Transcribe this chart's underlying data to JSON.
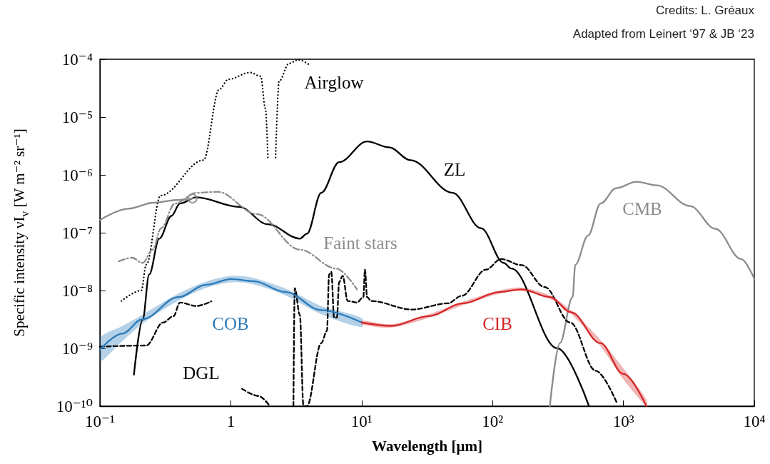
{
  "chart_data": {
    "type": "line",
    "xlabel": "Wavelength [μm]",
    "ylabel": "Specific intensity νI$_{ν}$ [W m⁻² sr⁻¹]",
    "log": "xy",
    "xlim": [
      0.1,
      10000
    ],
    "xticks": [
      {
        "value": 0.1,
        "label": "10⁻¹"
      },
      1,
      {
        "value": 10,
        "label": "10¹"
      },
      {
        "value": 100,
        "label": "10²"
      },
      {
        "value": 1000,
        "label": "10³"
      },
      {
        "value": 10000,
        "label": "10⁴"
      }
    ],
    "ylim": [
      1e-10,
      0.0001
    ],
    "yticks": [
      {
        "value": 1e-10,
        "label": "10⁻¹⁰"
      },
      {
        "value": 1e-09,
        "label": "10⁻⁹"
      },
      {
        "value": 1e-08,
        "label": "10⁻⁸"
      },
      {
        "value": 1e-07,
        "label": "10⁻⁷"
      },
      {
        "value": 1e-06,
        "label": "10⁻⁶"
      },
      {
        "value": 1e-05,
        "label": "10⁻⁵"
      },
      {
        "value": 0.0001,
        "label": "10⁻⁴"
      }
    ],
    "marker": "none",
    "series": [
      {
        "name": "Airglow",
        "color": "#000000",
        "line_style": "dotted",
        "x": [
          0.146,
          0.207,
          0.226,
          0.291,
          0.618,
          0.815,
          0.96,
          1.4,
          1.69,
          1.84,
          1.92,
          2.06,
          2.2,
          2.34,
          2.79,
          3.29,
          3.96
        ],
        "values": [
          6.6e-09,
          1e-08,
          2.8e-08,
          4.4e-07,
          1.8e-06,
          3e-05,
          4.5e-05,
          5.9e-05,
          5.1e-05,
          1.4e-05,
          2e-06,
          null,
          2e-06,
          4.2e-05,
          8.5e-05,
          9.8e-05,
          8.1e-05
        ]
      },
      {
        "name": "ZL",
        "color": "#000000",
        "line_style": "solid",
        "x": [
          0.182,
          0.212,
          0.238,
          0.284,
          0.352,
          0.409,
          0.545,
          1.16,
          1.92,
          3.37,
          3.82,
          4.91,
          6.73,
          11.0,
          16.2,
          23.6,
          49.5,
          81.5,
          122,
          139,
          313,
          546
        ],
        "values": [
          3.5e-10,
          3.1e-09,
          1.9e-08,
          7.9e-08,
          1.95e-07,
          3.2e-07,
          4.1e-07,
          2.8e-07,
          1.4e-07,
          7.9e-08,
          9.6e-08,
          4.9e-07,
          1.66e-06,
          3.8e-06,
          3e-06,
          1.8e-06,
          4.9e-07,
          1.2e-07,
          3e-08,
          2.4e-08,
          1e-09,
          1e-10
        ]
      },
      {
        "name": "Faint stars",
        "color": "#8c8c8c",
        "line_style": "dashdot",
        "x": [
          0.139,
          0.176,
          0.212,
          0.253,
          0.294,
          0.374,
          0.545,
          0.794,
          1.58,
          3.37,
          6.39,
          9.2
        ],
        "values": [
          3.2e-08,
          3.7e-08,
          3e-08,
          5.1e-08,
          1.2e-07,
          3.2e-07,
          4.9e-07,
          5.1e-07,
          2.1e-07,
          5.1e-08,
          2.4e-08,
          1.05e-08
        ]
      },
      {
        "color": "#8c8c8c",
        "line_style": "solid",
        "x": [
          0.1,
          0.165,
          0.257,
          0.398,
          0.51
        ],
        "values": [
          1.66e-07,
          2.6e-07,
          3.3e-07,
          3.7e-07,
          3.9e-07
        ]
      },
      {
        "type": "scatter",
        "color": "#8c8c8c",
        "marker": "circle",
        "x": [
          0.51
        ],
        "values": [
          3.9e-07
        ]
      },
      {
        "name": "CMB",
        "color": "#8c8c8c",
        "line_style": "solid",
        "x": [
          274,
          327,
          409,
          429,
          536,
          670,
          879,
          1257,
          1799,
          3221,
          5047,
          7925,
          10000
        ],
        "values": [
          1e-10,
          1.23e-09,
          7.7e-09,
          2.8e-08,
          8.9e-08,
          3.2e-07,
          5.9e-07,
          7.6e-07,
          6.6e-07,
          2.9e-07,
          1.17e-07,
          3.5e-08,
          1.6e-08
        ]
      },
      {
        "name": "DGL",
        "color": "#000000",
        "line_style": "dashed",
        "x": [
          0.1,
          0.226,
          0.304,
          0.365,
          0.409,
          0.545,
          0.71,
          1.0,
          1.22,
          1.63,
          1.99,
          2.5,
          3.01,
          3.08,
          3.37,
          3.59,
          3.82,
          4.91,
          5.43,
          5.64,
          5.86,
          6.16,
          6.47,
          6.73,
          7.16,
          7.82,
          9.2,
          10.3,
          10.6,
          11.0,
          11.8,
          24.2,
          45.4,
          58.2,
          89.1,
          116,
          167,
          250,
          392,
          614,
          897
        ],
        "values": [
          1.07e-09,
          1.12e-09,
          2.8e-09,
          3.6e-09,
          6.2e-09,
          5.4e-09,
          6.5e-09,
          null,
          2e-10,
          1.5e-10,
          1e-10,
          null,
          1e-10,
          1.1e-08,
          3.8e-09,
          1e-10,
          1e-10,
          1.23e-09,
          2e-09,
          1.9e-08,
          2.1e-08,
          3.4e-09,
          3.4e-09,
          1.4e-08,
          1.8e-08,
          6.6e-09,
          6.2e-09,
          7.7e-09,
          2.3e-08,
          7.7e-09,
          6.6e-09,
          4.7e-09,
          6e-09,
          8.1e-09,
          2.3e-08,
          3.5e-08,
          2.75e-08,
          1.15e-08,
          2.8e-09,
          4.1e-10,
          1.1e-10
        ]
      },
      {
        "name": "COB",
        "color": "#2b7bba",
        "line_style": "solid",
        "x": [
          0.1,
          0.148,
          0.212,
          0.398,
          0.65,
          1.01,
          1.49,
          2.62,
          4.91,
          10
        ],
        "values": [
          9.5e-10,
          1.8e-09,
          3.2e-09,
          7.7e-09,
          1.26e-08,
          1.58e-08,
          1.45e-08,
          9.4e-09,
          4.6e-09,
          2.8e-09
        ],
        "lower": [
          6e-10,
          1.33e-09,
          2.67e-09,
          6.7e-09,
          1.11e-08,
          1.39e-08,
          1.28e-08,
          8.2e-09,
          3.9e-09,
          2.33e-09
        ],
        "upper": [
          1.5e-09,
          2.43e-09,
          3.84e-09,
          8.85e-09,
          1.43e-08,
          1.79e-08,
          1.65e-08,
          1.08e-08,
          5.4e-09,
          3.36e-09
        ]
      },
      {
        "name": "CIB",
        "color": "#d62728",
        "line_style": "solid",
        "x": [
          10,
          16.9,
          32.3,
          59.6,
          113,
          167,
          274,
          399,
          667,
          1000,
          1500
        ],
        "values": [
          2.8e-09,
          2.45e-09,
          3.6e-09,
          6e-09,
          9.4e-09,
          1.05e-08,
          7.7e-09,
          4.2e-09,
          1.23e-09,
          3.6e-10,
          1e-10
        ],
        "lower": [
          2.6e-09,
          2.29e-09,
          3.36e-09,
          5.6e-09,
          8.8e-09,
          9.8e-09,
          7.2e-09,
          3.9e-09,
          1.1e-09,
          2.9e-10,
          1e-10
        ],
        "upper": [
          3e-09,
          2.62e-09,
          3.85e-09,
          6.4e-09,
          1e-08,
          1.12e-08,
          8.2e-09,
          4.5e-09,
          1.4e-09,
          4.5e-10,
          1.3e-10
        ]
      }
    ],
    "annotations": [
      "Credits: L. Gréaux",
      "Adapted from Leinert ‘97 & JB ‘23"
    ]
  }
}
